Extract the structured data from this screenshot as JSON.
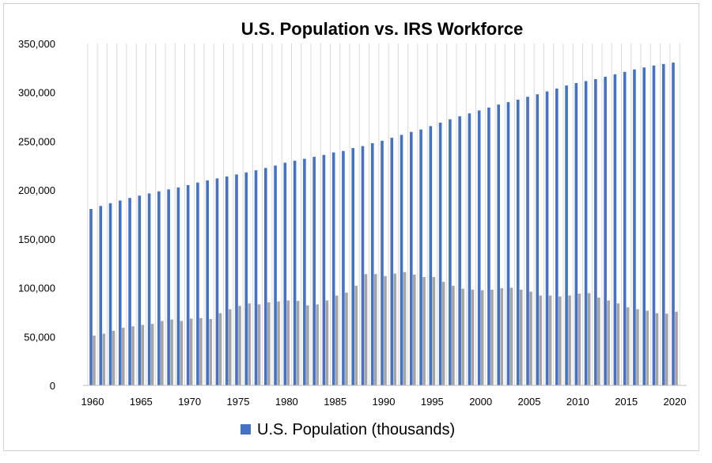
{
  "chart_data": {
    "type": "bar",
    "title": "U.S. Population vs. IRS Workforce",
    "xlabel": "",
    "ylabel": "",
    "ylim": [
      0,
      350000
    ],
    "yticks": [
      0,
      50000,
      100000,
      150000,
      200000,
      250000,
      300000,
      350000
    ],
    "ytick_labels": [
      "0",
      "50,000",
      "100,000",
      "150,000",
      "200,000",
      "250,000",
      "300,000",
      "350,000"
    ],
    "xtick_labels": [
      "1960",
      "1965",
      "1970",
      "1975",
      "1980",
      "1985",
      "1990",
      "1995",
      "2000",
      "2005",
      "2010",
      "2015",
      "2020"
    ],
    "grid": "vertical",
    "legend_position": "bottom",
    "colors": {
      "population": "#4472C4",
      "workforce": "#A5A5A5"
    },
    "categories": [
      1960,
      1961,
      1962,
      1963,
      1964,
      1965,
      1966,
      1967,
      1968,
      1969,
      1970,
      1971,
      1972,
      1973,
      1974,
      1975,
      1976,
      1977,
      1978,
      1979,
      1980,
      1981,
      1982,
      1983,
      1984,
      1985,
      1986,
      1987,
      1988,
      1989,
      1990,
      1991,
      1992,
      1993,
      1994,
      1995,
      1996,
      1997,
      1998,
      1999,
      2000,
      2001,
      2002,
      2003,
      2004,
      2005,
      2006,
      2007,
      2008,
      2009,
      2010,
      2011,
      2012,
      2013,
      2014,
      2015,
      2016,
      2017,
      2018,
      2019,
      2020
    ],
    "series": [
      {
        "name": "U.S. Population (thousands)",
        "values": [
          180671,
          183691,
          186538,
          189242,
          191889,
          194303,
          196560,
          198712,
          200706,
          202677,
          205052,
          207661,
          209896,
          211909,
          213854,
          215973,
          218035,
          220239,
          222585,
          225055,
          228000,
          230000,
          232000,
          234000,
          236000,
          238500,
          240000,
          243000,
          245000,
          248000,
          250500,
          253500,
          256500,
          259500,
          262000,
          265500,
          269000,
          272500,
          275500,
          278500,
          281500,
          284500,
          287500,
          290000,
          292500,
          295500,
          298000,
          301000,
          304000,
          307000,
          309500,
          311500,
          313500,
          316000,
          318500,
          321000,
          323500,
          325500,
          327500,
          329000,
          330500
        ]
      },
      {
        "values": [
          51000,
          53000,
          56000,
          59000,
          60500,
          62000,
          63000,
          66000,
          67500,
          66000,
          68500,
          69000,
          68000,
          74000,
          78000,
          81500,
          84000,
          83000,
          85000,
          86000,
          87000,
          86500,
          82000,
          83000,
          87000,
          92000,
          95000,
          102000,
          114000,
          114000,
          112000,
          114500,
          116000,
          113500,
          111000,
          111000,
          106000,
          102000,
          99000,
          98000,
          97500,
          98000,
          99500,
          100000,
          98000,
          96000,
          92000,
          92000,
          91000,
          92000,
          94000,
          94500,
          90000,
          87000,
          84000,
          80000,
          78000,
          76500,
          74000,
          73500,
          75500
        ]
      }
    ]
  },
  "legend": {
    "label": "U.S. Population (thousands)"
  }
}
